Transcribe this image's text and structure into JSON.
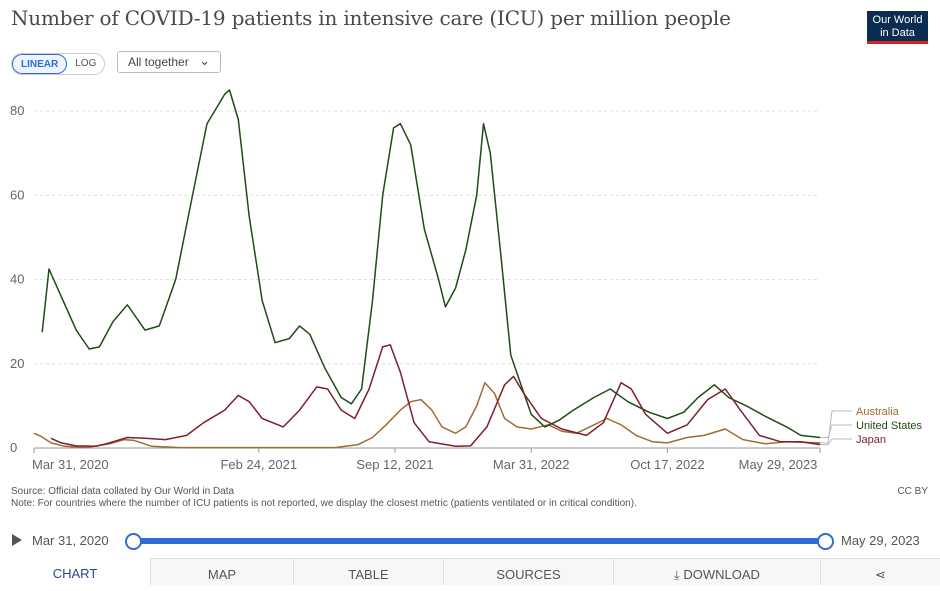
{
  "title": "Number of COVID-19 patients in intensive care (ICU) per million people",
  "logo": {
    "line1": "Our World",
    "line2": "in Data"
  },
  "scale_toggle": {
    "linear": "LINEAR",
    "log": "LOG"
  },
  "selector": {
    "label": "All together"
  },
  "footer": {
    "source": "Source: Official data collated by Our World in Data",
    "note": "Note: For countries where the number of ICU patients is not reported, we display the closest metric (patients ventilated or in critical condition).",
    "license": "CC BY"
  },
  "timeline": {
    "start": "Mar 31, 2020",
    "end": "May 29, 2023"
  },
  "tabs": [
    "CHART",
    "MAP",
    "TABLE",
    "SOURCES",
    "DOWNLOAD"
  ],
  "colors": {
    "Australia": "#a06b35",
    "United States": "#1e4d14",
    "Japan": "#7e1f2d",
    "grid": "#dddddd"
  },
  "chart_data": {
    "type": "line",
    "title": "Number of COVID-19 patients in intensive care (ICU) per million people",
    "ylim": [
      0,
      85
    ],
    "yticks": [
      0,
      20,
      40,
      60,
      80
    ],
    "xlim": [
      "2020-03-31",
      "2023-05-29"
    ],
    "xticks": [
      "Mar 31, 2020",
      "Feb 24, 2021",
      "Sep 12, 2021",
      "Mar 31, 2022",
      "Oct 17, 2022",
      "May 29, 2023"
    ],
    "xtick_dates": [
      "2020-03-31",
      "2021-02-24",
      "2021-09-12",
      "2022-03-31",
      "2022-10-17",
      "2023-05-29"
    ],
    "grid": "horizontal dashed",
    "legend": "right end labels",
    "series": [
      {
        "name": "Australia",
        "points": [
          [
            "2020-03-31",
            3.5
          ],
          [
            "2020-04-10",
            2.8
          ],
          [
            "2020-04-25",
            1.2
          ],
          [
            "2020-05-15",
            0.4
          ],
          [
            "2020-06-15",
            0.1
          ],
          [
            "2020-07-20",
            1.0
          ],
          [
            "2020-08-10",
            2.0
          ],
          [
            "2020-08-25",
            1.8
          ],
          [
            "2020-09-20",
            0.4
          ],
          [
            "2020-11-01",
            0.1
          ],
          [
            "2021-03-01",
            0.1
          ],
          [
            "2021-06-15",
            0.1
          ],
          [
            "2021-07-20",
            0.8
          ],
          [
            "2021-08-10",
            2.5
          ],
          [
            "2021-08-30",
            5.5
          ],
          [
            "2021-09-20",
            9.0
          ],
          [
            "2021-10-05",
            11.0
          ],
          [
            "2021-10-20",
            11.5
          ],
          [
            "2021-11-05",
            9.0
          ],
          [
            "2021-11-20",
            5.0
          ],
          [
            "2021-12-10",
            3.5
          ],
          [
            "2021-12-25",
            5.0
          ],
          [
            "2022-01-10",
            10.0
          ],
          [
            "2022-01-22",
            15.5
          ],
          [
            "2022-02-05",
            13.0
          ],
          [
            "2022-02-20",
            7.0
          ],
          [
            "2022-03-10",
            5.0
          ],
          [
            "2022-03-31",
            4.5
          ],
          [
            "2022-04-25",
            5.5
          ],
          [
            "2022-05-15",
            4.0
          ],
          [
            "2022-06-05",
            3.5
          ],
          [
            "2022-06-25",
            5.0
          ],
          [
            "2022-07-20",
            7.0
          ],
          [
            "2022-08-10",
            5.5
          ],
          [
            "2022-09-01",
            3.0
          ],
          [
            "2022-09-25",
            1.5
          ],
          [
            "2022-10-17",
            1.2
          ],
          [
            "2022-11-15",
            2.5
          ],
          [
            "2022-12-10",
            3.0
          ],
          [
            "2023-01-10",
            4.5
          ],
          [
            "2023-02-05",
            2.0
          ],
          [
            "2023-03-10",
            1.0
          ],
          [
            "2023-04-10",
            1.5
          ],
          [
            "2023-05-29",
            1.2
          ]
        ]
      },
      {
        "name": "United States",
        "points": [
          [
            "2020-04-12",
            27.5
          ],
          [
            "2020-04-22",
            42.5
          ],
          [
            "2020-05-10",
            36.0
          ],
          [
            "2020-06-01",
            28.0
          ],
          [
            "2020-06-20",
            23.5
          ],
          [
            "2020-07-05",
            24.0
          ],
          [
            "2020-07-25",
            30.0
          ],
          [
            "2020-08-15",
            34.0
          ],
          [
            "2020-09-10",
            28.0
          ],
          [
            "2020-10-01",
            29.0
          ],
          [
            "2020-10-25",
            40.0
          ],
          [
            "2020-11-15",
            57.0
          ],
          [
            "2020-12-10",
            77.0
          ],
          [
            "2021-01-05",
            84.0
          ],
          [
            "2021-01-12",
            85.0
          ],
          [
            "2021-01-25",
            78.0
          ],
          [
            "2021-02-10",
            55.0
          ],
          [
            "2021-03-01",
            35.0
          ],
          [
            "2021-03-20",
            25.0
          ],
          [
            "2021-04-10",
            26.0
          ],
          [
            "2021-04-25",
            29.0
          ],
          [
            "2021-05-10",
            27.0
          ],
          [
            "2021-06-01",
            19.0
          ],
          [
            "2021-06-25",
            12.0
          ],
          [
            "2021-07-10",
            10.5
          ],
          [
            "2021-07-25",
            14.0
          ],
          [
            "2021-08-10",
            35.0
          ],
          [
            "2021-08-25",
            60.0
          ],
          [
            "2021-09-10",
            76.0
          ],
          [
            "2021-09-20",
            77.0
          ],
          [
            "2021-10-05",
            72.0
          ],
          [
            "2021-10-25",
            52.0
          ],
          [
            "2021-11-15",
            40.0
          ],
          [
            "2021-11-25",
            33.5
          ],
          [
            "2021-12-10",
            38.0
          ],
          [
            "2021-12-25",
            47.0
          ],
          [
            "2022-01-10",
            60.0
          ],
          [
            "2022-01-20",
            77.0
          ],
          [
            "2022-01-30",
            70.0
          ],
          [
            "2022-02-15",
            45.0
          ],
          [
            "2022-03-01",
            22.0
          ],
          [
            "2022-03-31",
            8.0
          ],
          [
            "2022-04-20",
            5.0
          ],
          [
            "2022-05-10",
            6.5
          ],
          [
            "2022-06-01",
            9.0
          ],
          [
            "2022-07-01",
            12.0
          ],
          [
            "2022-07-25",
            14.0
          ],
          [
            "2022-08-20",
            11.0
          ],
          [
            "2022-09-20",
            8.5
          ],
          [
            "2022-10-17",
            7.0
          ],
          [
            "2022-11-10",
            8.5
          ],
          [
            "2022-12-01",
            12.0
          ],
          [
            "2022-12-25",
            15.0
          ],
          [
            "2023-01-15",
            12.0
          ],
          [
            "2023-02-10",
            10.0
          ],
          [
            "2023-03-10",
            7.5
          ],
          [
            "2023-04-10",
            5.0
          ],
          [
            "2023-05-01",
            3.0
          ],
          [
            "2023-05-29",
            2.5
          ]
        ]
      },
      {
        "name": "Japan",
        "points": [
          [
            "2020-04-25",
            2.3
          ],
          [
            "2020-05-10",
            1.2
          ],
          [
            "2020-06-01",
            0.5
          ],
          [
            "2020-06-30",
            0.4
          ],
          [
            "2020-07-20",
            1.2
          ],
          [
            "2020-08-15",
            2.5
          ],
          [
            "2020-09-10",
            2.3
          ],
          [
            "2020-10-10",
            2.0
          ],
          [
            "2020-11-10",
            3.0
          ],
          [
            "2020-12-05",
            6.0
          ],
          [
            "2021-01-05",
            9.0
          ],
          [
            "2021-01-25",
            12.5
          ],
          [
            "2021-02-10",
            11.0
          ],
          [
            "2021-03-01",
            7.0
          ],
          [
            "2021-04-01",
            5.0
          ],
          [
            "2021-04-25",
            9.0
          ],
          [
            "2021-05-20",
            14.5
          ],
          [
            "2021-06-05",
            14.0
          ],
          [
            "2021-06-25",
            9.0
          ],
          [
            "2021-07-15",
            7.0
          ],
          [
            "2021-08-05",
            14.0
          ],
          [
            "2021-08-25",
            24.0
          ],
          [
            "2021-09-05",
            24.5
          ],
          [
            "2021-09-20",
            18.0
          ],
          [
            "2021-10-10",
            6.0
          ],
          [
            "2021-11-01",
            1.5
          ],
          [
            "2021-12-10",
            0.4
          ],
          [
            "2022-01-01",
            0.5
          ],
          [
            "2022-01-25",
            5.0
          ],
          [
            "2022-02-20",
            15.0
          ],
          [
            "2022-03-05",
            17.0
          ],
          [
            "2022-03-20",
            13.0
          ],
          [
            "2022-04-15",
            7.0
          ],
          [
            "2022-05-15",
            4.5
          ],
          [
            "2022-06-20",
            3.0
          ],
          [
            "2022-07-15",
            6.0
          ],
          [
            "2022-08-10",
            15.5
          ],
          [
            "2022-08-25",
            14.0
          ],
          [
            "2022-09-15",
            8.0
          ],
          [
            "2022-10-17",
            3.5
          ],
          [
            "2022-11-15",
            5.5
          ],
          [
            "2022-12-15",
            11.5
          ],
          [
            "2023-01-10",
            14.0
          ],
          [
            "2023-02-01",
            9.0
          ],
          [
            "2023-03-01",
            3.0
          ],
          [
            "2023-04-01",
            1.5
          ],
          [
            "2023-05-01",
            1.5
          ],
          [
            "2023-05-29",
            0.8
          ]
        ]
      }
    ]
  }
}
